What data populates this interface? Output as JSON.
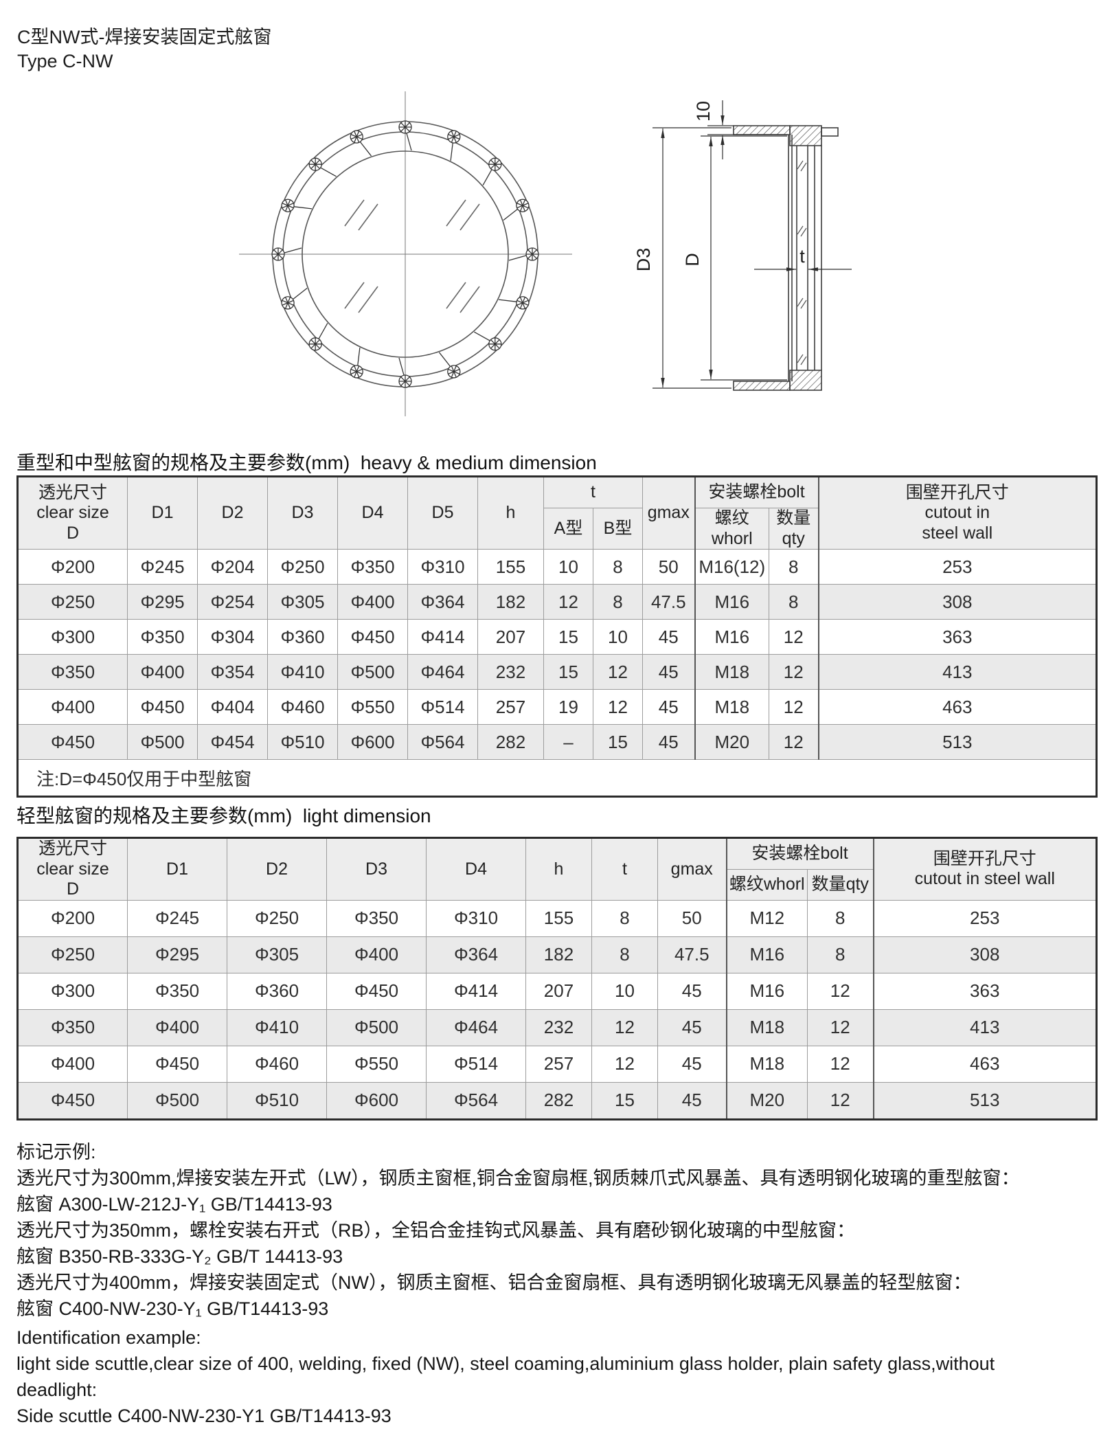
{
  "header": {
    "title_cn": "C型NW式-焊接安装固定式舷窗",
    "title_en": "Type C-NW"
  },
  "drawing": {
    "dim_top": "10",
    "dim_outer": "D3",
    "dim_inner": "D",
    "dim_thickness": "t"
  },
  "table_heavy": {
    "heading": "重型和中型舷窗的规格及主要参数(mm)  heavy & medium dimension",
    "cols": {
      "clear": "透光尺寸\nclear size\nD",
      "d1": "D1",
      "d2": "D2",
      "d3": "D3",
      "d4": "D4",
      "d5": "D5",
      "h": "h",
      "t": "t",
      "t_a": "A型",
      "t_b": "B型",
      "gmax": "gmax",
      "bolt": "安装螺栓bolt",
      "whorl": "螺纹whorl",
      "qty": "数量qty",
      "cutout": "围壁开孔尺寸\ncutout in\nsteel wall"
    },
    "rows": [
      [
        "Φ200",
        "Φ245",
        "Φ204",
        "Φ250",
        "Φ350",
        "Φ310",
        "155",
        "10",
        "8",
        "50",
        "M16(12)",
        "8",
        "253"
      ],
      [
        "Φ250",
        "Φ295",
        "Φ254",
        "Φ305",
        "Φ400",
        "Φ364",
        "182",
        "12",
        "8",
        "47.5",
        "M16",
        "8",
        "308"
      ],
      [
        "Φ300",
        "Φ350",
        "Φ304",
        "Φ360",
        "Φ450",
        "Φ414",
        "207",
        "15",
        "10",
        "45",
        "M16",
        "12",
        "363"
      ],
      [
        "Φ350",
        "Φ400",
        "Φ354",
        "Φ410",
        "Φ500",
        "Φ464",
        "232",
        "15",
        "12",
        "45",
        "M18",
        "12",
        "413"
      ],
      [
        "Φ400",
        "Φ450",
        "Φ404",
        "Φ460",
        "Φ550",
        "Φ514",
        "257",
        "19",
        "12",
        "45",
        "M18",
        "12",
        "463"
      ],
      [
        "Φ450",
        "Φ500",
        "Φ454",
        "Φ510",
        "Φ600",
        "Φ564",
        "282",
        "–",
        "15",
        "45",
        "M20",
        "12",
        "513"
      ]
    ],
    "note": "注:D=Φ450仅用于中型舷窗"
  },
  "table_light": {
    "heading": "轻型舷窗的规格及主要参数(mm)  light dimension",
    "cols": {
      "clear": "透光尺寸\nclear size\nD",
      "d1": "D1",
      "d2": "D2",
      "d3": "D3",
      "d4": "D4",
      "h": "h",
      "t": "t",
      "gmax": "gmax",
      "bolt": "安装螺栓bolt",
      "whorl": "螺纹whorl",
      "qty": "数量qty",
      "cutout": "围壁开孔尺寸\ncutout in steel wall"
    },
    "rows": [
      [
        "Φ200",
        "Φ245",
        "Φ250",
        "Φ350",
        "Φ310",
        "155",
        "8",
        "50",
        "M12",
        "8",
        "253"
      ],
      [
        "Φ250",
        "Φ295",
        "Φ305",
        "Φ400",
        "Φ364",
        "182",
        "8",
        "47.5",
        "M16",
        "8",
        "308"
      ],
      [
        "Φ300",
        "Φ350",
        "Φ360",
        "Φ450",
        "Φ414",
        "207",
        "10",
        "45",
        "M16",
        "12",
        "363"
      ],
      [
        "Φ350",
        "Φ400",
        "Φ410",
        "Φ500",
        "Φ464",
        "232",
        "12",
        "45",
        "M18",
        "12",
        "413"
      ],
      [
        "Φ400",
        "Φ450",
        "Φ460",
        "Φ550",
        "Φ514",
        "257",
        "12",
        "45",
        "M18",
        "12",
        "463"
      ],
      [
        "Φ450",
        "Φ500",
        "Φ510",
        "Φ600",
        "Φ564",
        "282",
        "15",
        "45",
        "M20",
        "12",
        "513"
      ]
    ]
  },
  "notes": {
    "lines": [
      "标记示例:",
      "透光尺寸为300mm,焊接安装左开式（LW），钢质主窗框,铜合金窗扇框,钢质棘爪式风暴盖、具有透明钢化玻璃的重型舷窗：",
      "舷窗 A300-LW-212J-Y₁ GB/T14413-93",
      "透光尺寸为350mm，螺栓安装右开式（RB），全铝合金挂钩式风暴盖、具有磨砂钢化玻璃的中型舷窗：",
      "舷窗 B350-RB-333G-Y₂ GB/T 14413-93",
      "透光尺寸为400mm，焊接安装固定式（NW），钢质主窗框、铝合金窗扇框、具有透明钢化玻璃无风暴盖的轻型舷窗：",
      "舷窗 C400-NW-230-Y₁ GB/T14413-93",
      "Identification example:",
      "light side scuttle,clear size of 400, welding, fixed (NW), steel coaming,aluminium glass holder, plain safety glass,without",
      "deadlight:",
      "Side scuttle C400-NW-230-Y1 GB/T14413-93"
    ]
  }
}
